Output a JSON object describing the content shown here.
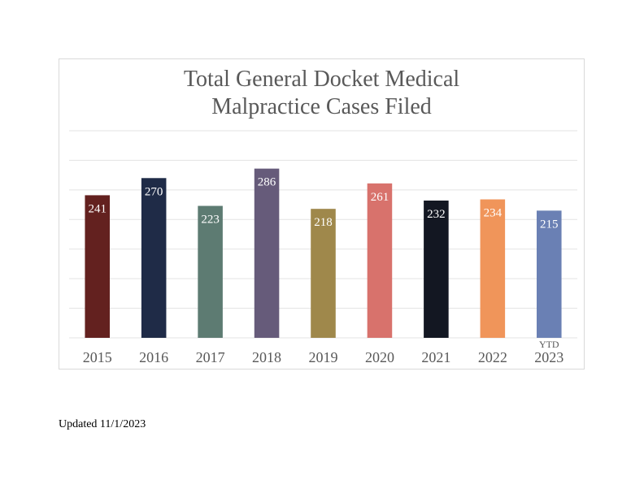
{
  "chart_data": {
    "type": "bar",
    "title_lines": [
      "Total General Docket Medical",
      "Malpractice Cases Filed"
    ],
    "categories": [
      "2015",
      "2016",
      "2017",
      "2018",
      "2019",
      "2020",
      "2021",
      "2022",
      "2023"
    ],
    "category_notes": [
      "",
      "",
      "",
      "",
      "",
      "",
      "",
      "",
      "YTD"
    ],
    "values": [
      241,
      270,
      223,
      286,
      218,
      261,
      232,
      234,
      215
    ],
    "colors": [
      "#63211f",
      "#1f2b47",
      "#5d7b72",
      "#665b7a",
      "#9f884b",
      "#d8726c",
      "#131722",
      "#f0955a",
      "#6a80b4"
    ],
    "ylim": [
      0,
      350
    ],
    "grid": true,
    "gridline_step": 50,
    "legend": "none"
  },
  "footer": {
    "updated": "Updated 11/1/2023"
  }
}
